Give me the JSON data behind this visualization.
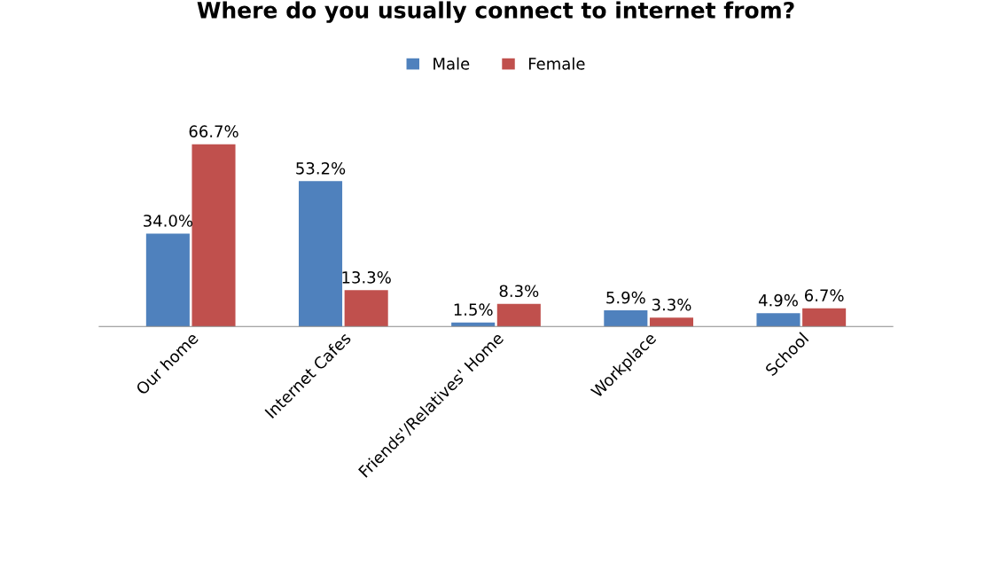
{
  "chart_data": {
    "type": "bar",
    "title": "Where do you usually connect to internet from?",
    "categories": [
      "Our home",
      "Internet Cafes",
      "Friends'/Relatives' Home",
      "Workplace",
      "School"
    ],
    "series": [
      {
        "name": "Male",
        "color": "#4f81bd",
        "values": [
          34.0,
          53.2,
          1.5,
          5.9,
          4.9
        ],
        "value_labels": [
          "34.0%",
          "53.2%",
          "1.5%",
          "5.9%",
          "4.9%"
        ]
      },
      {
        "name": "Female",
        "color": "#c0504d",
        "values": [
          66.7,
          13.3,
          8.3,
          3.3,
          6.7
        ],
        "value_labels": [
          "66.7%",
          "13.3%",
          "8.3%",
          "3.3%",
          "6.7%"
        ]
      }
    ],
    "legend": "top",
    "grid": false,
    "tick_labels": "x"
  }
}
